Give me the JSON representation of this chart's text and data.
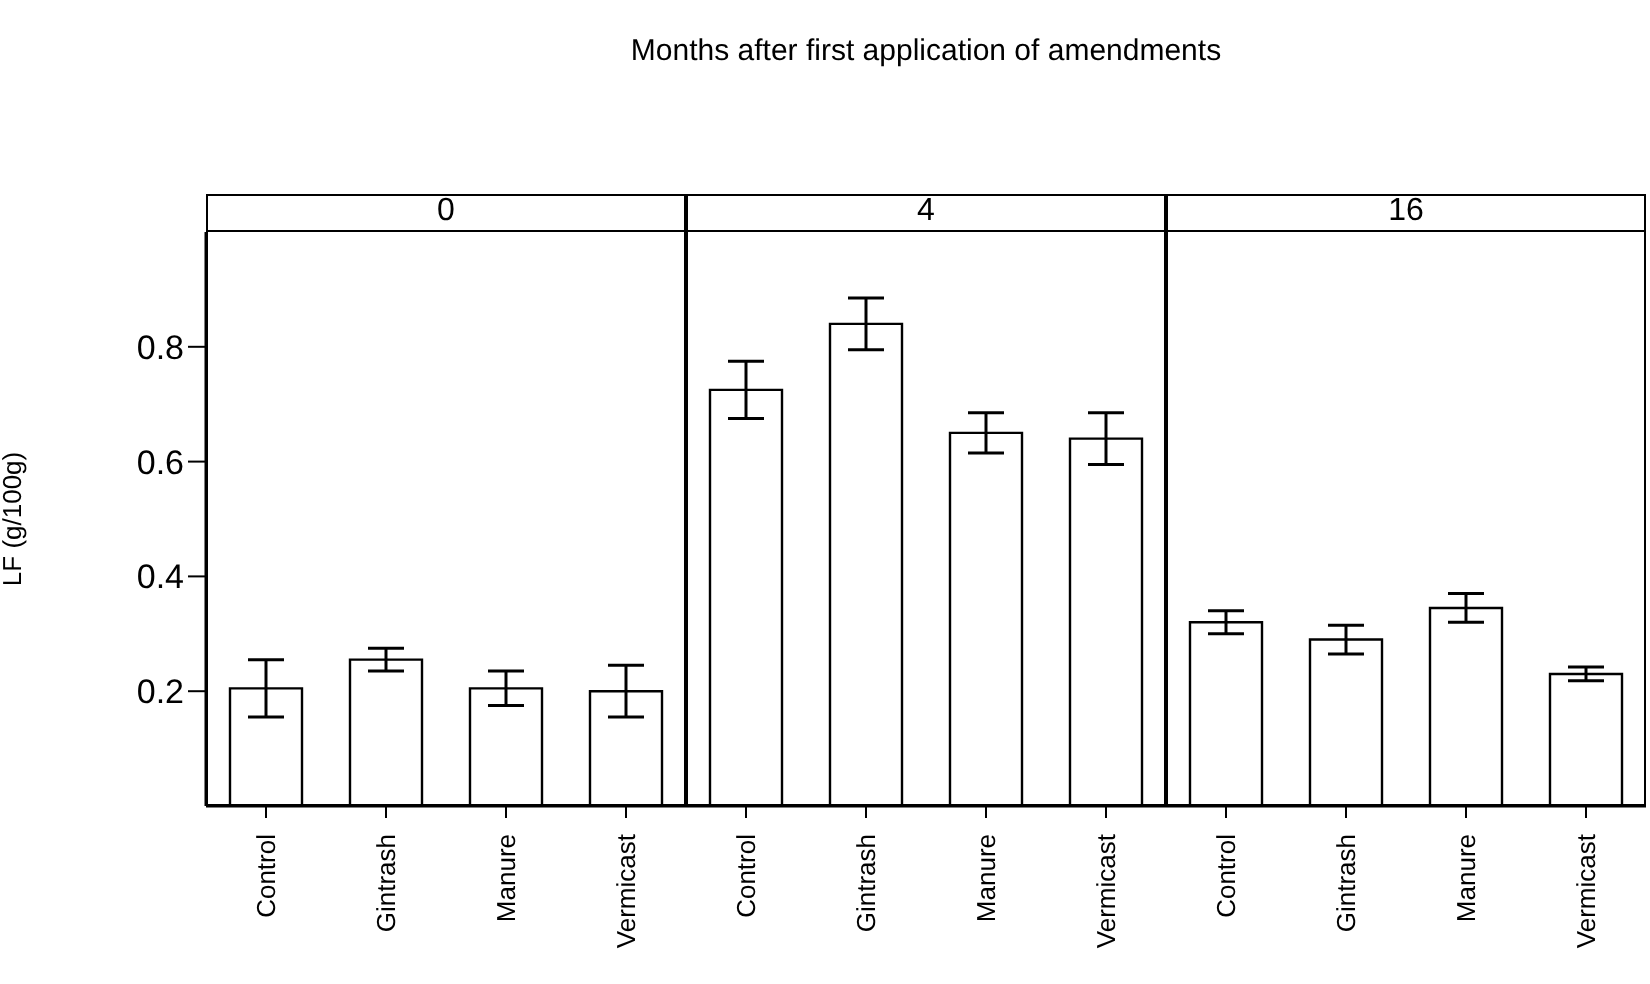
{
  "chart_data": [
    {
      "type": "bar",
      "title": "0",
      "annotations": [
        "Months after first application of amendments"
      ],
      "ylabel": "LF (g/100g)",
      "categories": [
        "Control",
        "Gintrash",
        "Manure",
        "Vermicast"
      ],
      "values": [
        0.205,
        0.255,
        0.205,
        0.2
      ],
      "errors": [
        0.05,
        0.02,
        0.03,
        0.045
      ],
      "color": "#ffffff",
      "ylim": [
        0,
        1
      ],
      "yticks": [
        0.2,
        0.4,
        0.6,
        0.8
      ]
    },
    {
      "type": "bar",
      "title": "4",
      "categories": [
        "Control",
        "Gintrash",
        "Manure",
        "Vermicast"
      ],
      "values": [
        0.725,
        0.84,
        0.65,
        0.64
      ],
      "errors": [
        0.05,
        0.045,
        0.035,
        0.045
      ],
      "color": "#ffffff",
      "ylim": [
        0,
        1
      ],
      "yticks": [
        0.2,
        0.4,
        0.6,
        0.8
      ],
      "tick_labels": "x"
    },
    {
      "type": "bar",
      "title": "16",
      "categories": [
        "Control",
        "Gintrash",
        "Manure",
        "Vermicast"
      ],
      "values": [
        0.32,
        0.29,
        0.345,
        0.23
      ],
      "errors": [
        0.02,
        0.025,
        0.025,
        0.012
      ],
      "color": "#ffffff",
      "ylim": [
        0,
        1
      ],
      "yticks": [
        0.2,
        0.4,
        0.6,
        0.8
      ],
      "tick_labels": "x"
    }
  ]
}
